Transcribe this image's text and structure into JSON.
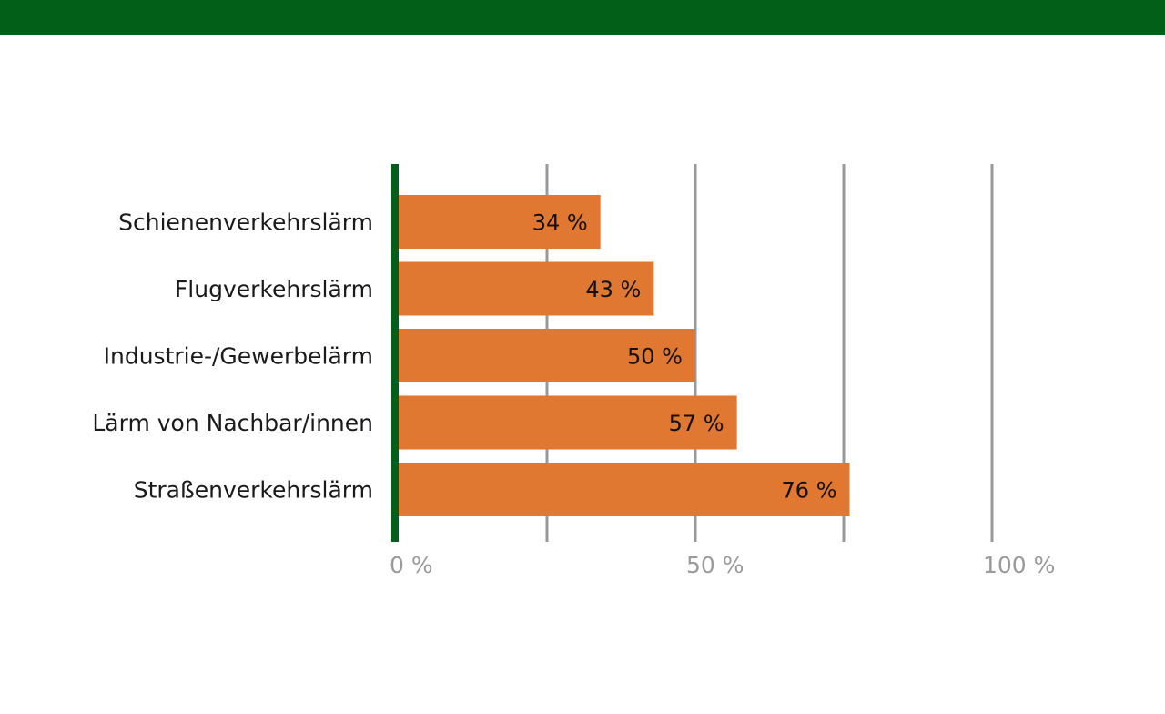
{
  "colors": {
    "header_band": "#025f18",
    "axis_line": "#025f18",
    "bar": "#e07832",
    "grid": "#999999",
    "category_text": "#1a1a1a",
    "value_text": "#111111",
    "tick_text": "#9a9a9a"
  },
  "chart_data": {
    "type": "bar",
    "orientation": "horizontal",
    "categories": [
      "Schienenverkehrslärm",
      "Flugverkehrslärm",
      "Industrie-/Gewerbelärm",
      "Lärm von Nachbar/innen",
      "Straßenverkehrslärm"
    ],
    "values": [
      34,
      43,
      50,
      57,
      76
    ],
    "value_labels": [
      "34 %",
      "43 %",
      "50 %",
      "57 %",
      "76 %"
    ],
    "xlim": [
      0,
      100
    ],
    "gridlines": [
      25,
      50,
      75,
      100
    ],
    "x_ticks": [
      0,
      50,
      100
    ],
    "x_tick_labels": [
      "0 %",
      "50 %",
      "100 %"
    ],
    "grid": true,
    "legend": "none"
  }
}
